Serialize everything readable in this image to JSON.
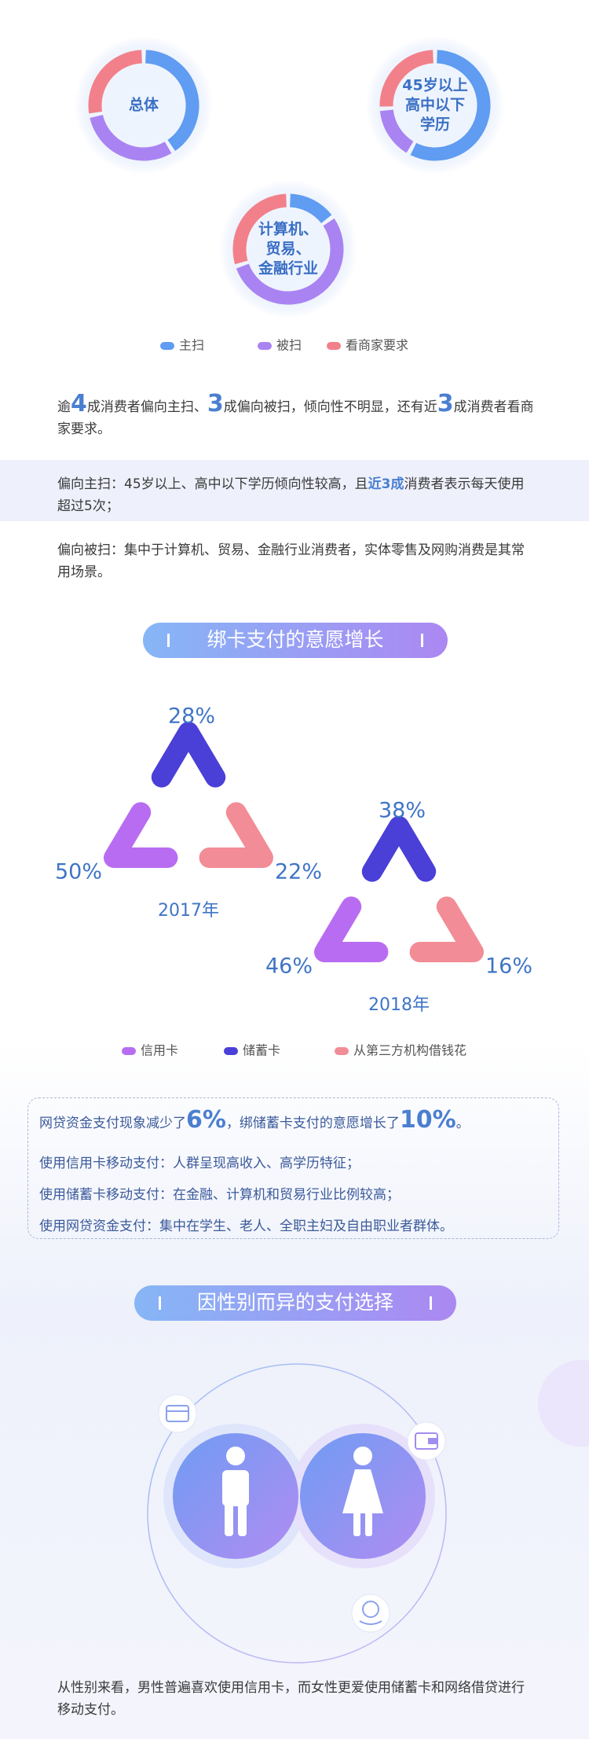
{
  "donuts": {
    "items": [
      {
        "label": [
          "总体"
        ],
        "values": [
          41,
          31,
          28
        ]
      },
      {
        "label": [
          "45岁以上",
          "高中以下",
          "学历"
        ],
        "values": [
          58,
          16,
          26
        ]
      },
      {
        "label": [
          "计算机、",
          "贸易、",
          "金融行业"
        ],
        "values": [
          15,
          55,
          30
        ]
      }
    ],
    "legend": [
      {
        "name": "主扫",
        "color": "#5f9cf2"
      },
      {
        "name": "被扫",
        "color": "#a983f2"
      },
      {
        "name": "看商家要求",
        "color": "#f2808a"
      }
    ]
  },
  "summary": [
    "逾",
    "4",
    "成消费者偏向主扫、",
    "3",
    "成偏向被扫，倾向性不明显，还有近",
    "3",
    "成消费者看商家要求。"
  ],
  "notes": [
    [
      "偏向主扫：45岁以上、高中以下学历倾向性较高，且",
      "近3成",
      "消费者表示每天使用超过5次；"
    ],
    [
      "偏向被扫：集中于计算机、贸易、金融行业消费者，实体零售及网购消费是其常用场景。"
    ]
  ],
  "section1": {
    "title": "绑卡支付的意愿增长",
    "charts": [
      {
        "year": "2017年",
        "values": [
          50,
          28,
          22
        ],
        "value_labels": [
          "50%",
          "28%",
          "22%"
        ]
      },
      {
        "year": "2018年",
        "values": [
          46,
          38,
          16
        ],
        "value_labels": [
          "46%",
          "38%",
          "16%"
        ]
      }
    ],
    "legend": [
      {
        "name": "信用卡",
        "color": "#b86cf2"
      },
      {
        "name": "储蓄卡",
        "color": "#4a3fd6"
      },
      {
        "name": "从第三方机构借钱花",
        "color": "#f28c96"
      }
    ]
  },
  "box": {
    "headline": [
      "网贷资金支付现象减少了",
      "6%",
      "，绑储蓄卡支付的意愿增长了",
      "10%",
      "。"
    ],
    "lines": [
      "使用信用卡移动支付：人群呈现高收入、高学历特征；",
      "使用储蓄卡移动支付：在金融、计算机和贸易行业比例较高；",
      "使用网贷资金支付：集中在学生、老人、全职主妇及自由职业者群体。"
    ]
  },
  "section2": {
    "title": "因性别而异的支付选择",
    "text": "从性别来看，男性普遍喜欢使用信用卡，而女性更爱使用储蓄卡和网络借贷进行移动支付。"
  }
}
